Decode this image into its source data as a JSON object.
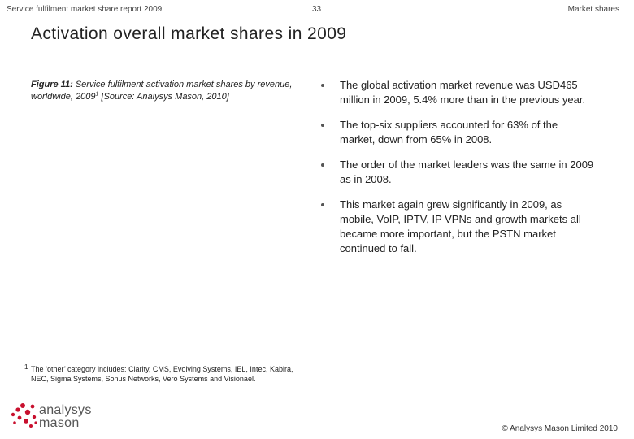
{
  "header": {
    "left": "Service fulfilment market share report 2009",
    "page_number": "33",
    "right": "Market shares"
  },
  "title": "Activation overall market shares in 2009",
  "figure": {
    "label": "Figure 11:",
    "caption": "Service fulfilment activation market shares by revenue, worldwide, 2009",
    "footnote_ref": "1",
    "source": "[Source: Analysys Mason, 2010]"
  },
  "bullets": [
    "The global activation market revenue was USD465 million in 2009, 5.4% more than in the previous year.",
    "The top-six suppliers accounted for 63% of the market, down from 65% in 2008.",
    "The order of the market leaders was the same in 2009 as in 2008.",
    "This market again grew significantly in 2009, as mobile, VoIP, IPTV, IP VPNs and growth markets all became more important, but the PSTN market continued to fall."
  ],
  "footnote": {
    "mark": "1",
    "text": "The ‘other’ category includes: Clarity, CMS, Evolving Systems, IEL, Intec, Kabira, NEC, Sigma Systems, Sonus Networks, Vero Systems and Visionael."
  },
  "logo": {
    "line1": "analysys",
    "line2": "mason",
    "accent_color": "#c8102e"
  },
  "copyright": "© Analysys Mason Limited 2010"
}
